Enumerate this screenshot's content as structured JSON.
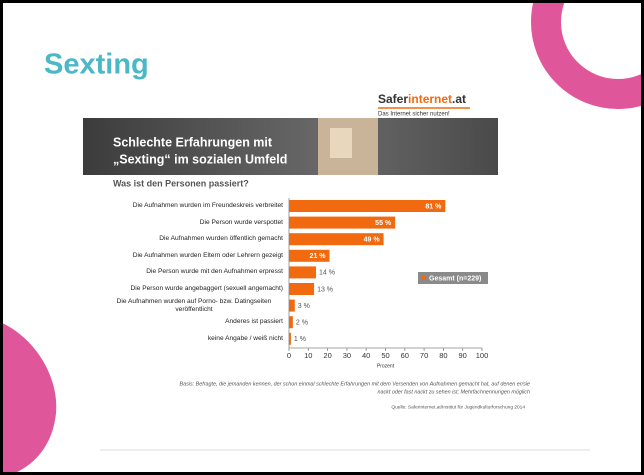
{
  "slide_title": "Sexting",
  "logo": {
    "part1": "Safer",
    "part2": "internet",
    "part3": ".at",
    "tagline": "Das Internet sicher nutzen!"
  },
  "banner": {
    "line1": "Schlechte Erfahrungen mit",
    "line2": "„Sexting“ im sozialen Umfeld"
  },
  "chart_data": {
    "type": "bar",
    "orientation": "horizontal",
    "subtitle": "Was ist den Personen passiert?",
    "categories": [
      "Die Aufnahmen wurden im Freundeskreis verbreitet",
      "Die Person wurde verspottet",
      "Die Aufnahmen wurden öffentlich gemacht",
      "Die Aufnahmen wurden Eltern oder Lehrern gezeigt",
      "Die Person wurde mit den Aufnahmen erpresst",
      "Die Person wurde angebaggert (sexuell angemacht)",
      "Die Aufnahmen wurden auf Porno- bzw. Datingseiten veröffentlicht",
      "Anderes ist passiert",
      "keine Angabe / weiß nicht"
    ],
    "series": [
      {
        "name": "Gesamt (n=229)",
        "color": "#f26a10",
        "values": [
          81,
          55,
          49,
          21,
          14,
          13,
          3,
          2,
          1
        ],
        "value_labels": [
          "81 %",
          "55 %",
          "49 %",
          "21 %",
          "14 %",
          "13 %",
          "3 %",
          "2 %",
          "1 %"
        ]
      }
    ],
    "xlim": [
      0,
      100
    ],
    "xticks": [
      0,
      10,
      20,
      30,
      40,
      50,
      60,
      70,
      80,
      90,
      100
    ],
    "x_label": "Prozent",
    "legend": "right"
  },
  "footnote": {
    "line1": "Basis: Befragte, die jemanden kennen, der schon einmal schlechte Erfahrungen mit dem Versenden von Aufnahmen gemacht hat, auf denen er/sie",
    "line2": "nackt oder fast nackt zu sehen ist; Mehrfachnennungen möglich"
  },
  "source": "Quelle: Saferinternet.at/Institut für Jugendkulturforschung 2014"
}
